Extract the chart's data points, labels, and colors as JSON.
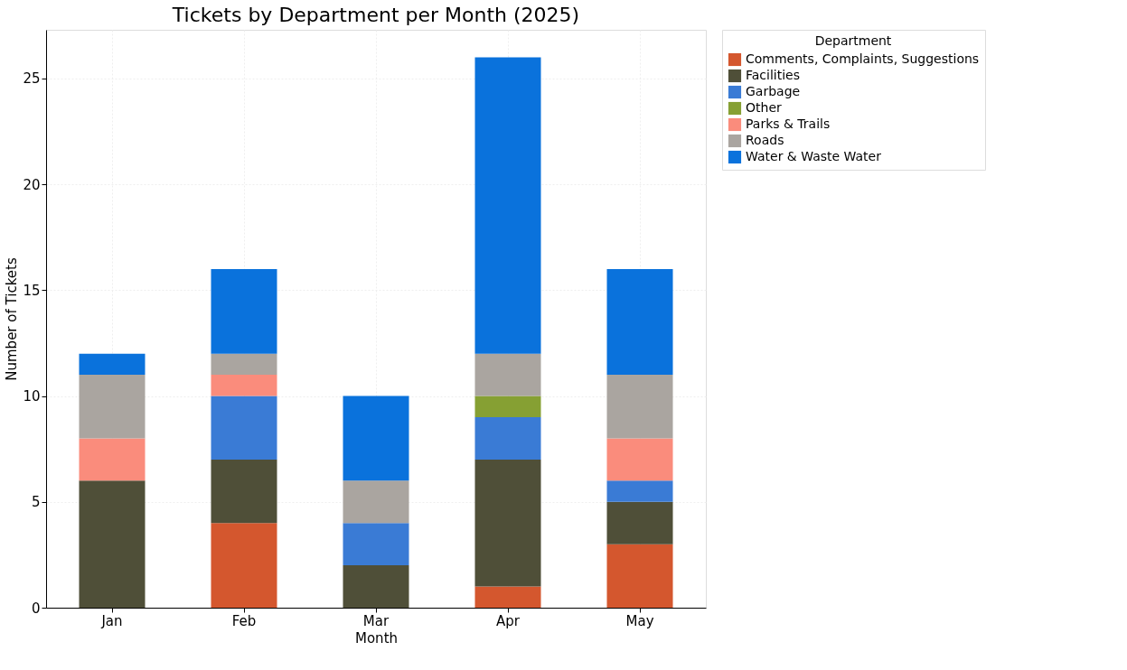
{
  "chart_data": {
    "type": "bar",
    "title": "Tickets by Department per Month (2025)",
    "xlabel": "Month",
    "ylabel": "Number of Tickets",
    "legend_title": "Department",
    "categories": [
      "Jan",
      "Feb",
      "Mar",
      "Apr",
      "May"
    ],
    "stacked": true,
    "series": [
      {
        "name": "Comments, Complaints, Suggestions",
        "color": "#d4572e",
        "values": [
          0,
          4,
          0,
          1,
          3
        ]
      },
      {
        "name": "Facilities",
        "color": "#4f4f38",
        "values": [
          6,
          3,
          2,
          6,
          2
        ]
      },
      {
        "name": "Garbage",
        "color": "#3a7bd5",
        "values": [
          0,
          3,
          2,
          2,
          1
        ]
      },
      {
        "name": "Other",
        "color": "#86a033",
        "values": [
          0,
          0,
          0,
          1,
          0
        ]
      },
      {
        "name": "Parks & Trails",
        "color": "#fa8c7c",
        "values": [
          2,
          1,
          0,
          0,
          2
        ]
      },
      {
        "name": "Roads",
        "color": "#aaa5a0",
        "values": [
          3,
          1,
          2,
          2,
          3
        ]
      },
      {
        "name": "Water & Waste Water",
        "color": "#0a72dc",
        "values": [
          1,
          4,
          4,
          14,
          5
        ]
      }
    ],
    "ylim": [
      0,
      27.3
    ],
    "yticks": [
      0,
      5,
      10,
      15,
      20,
      25
    ],
    "grid": true,
    "legend": "right"
  }
}
